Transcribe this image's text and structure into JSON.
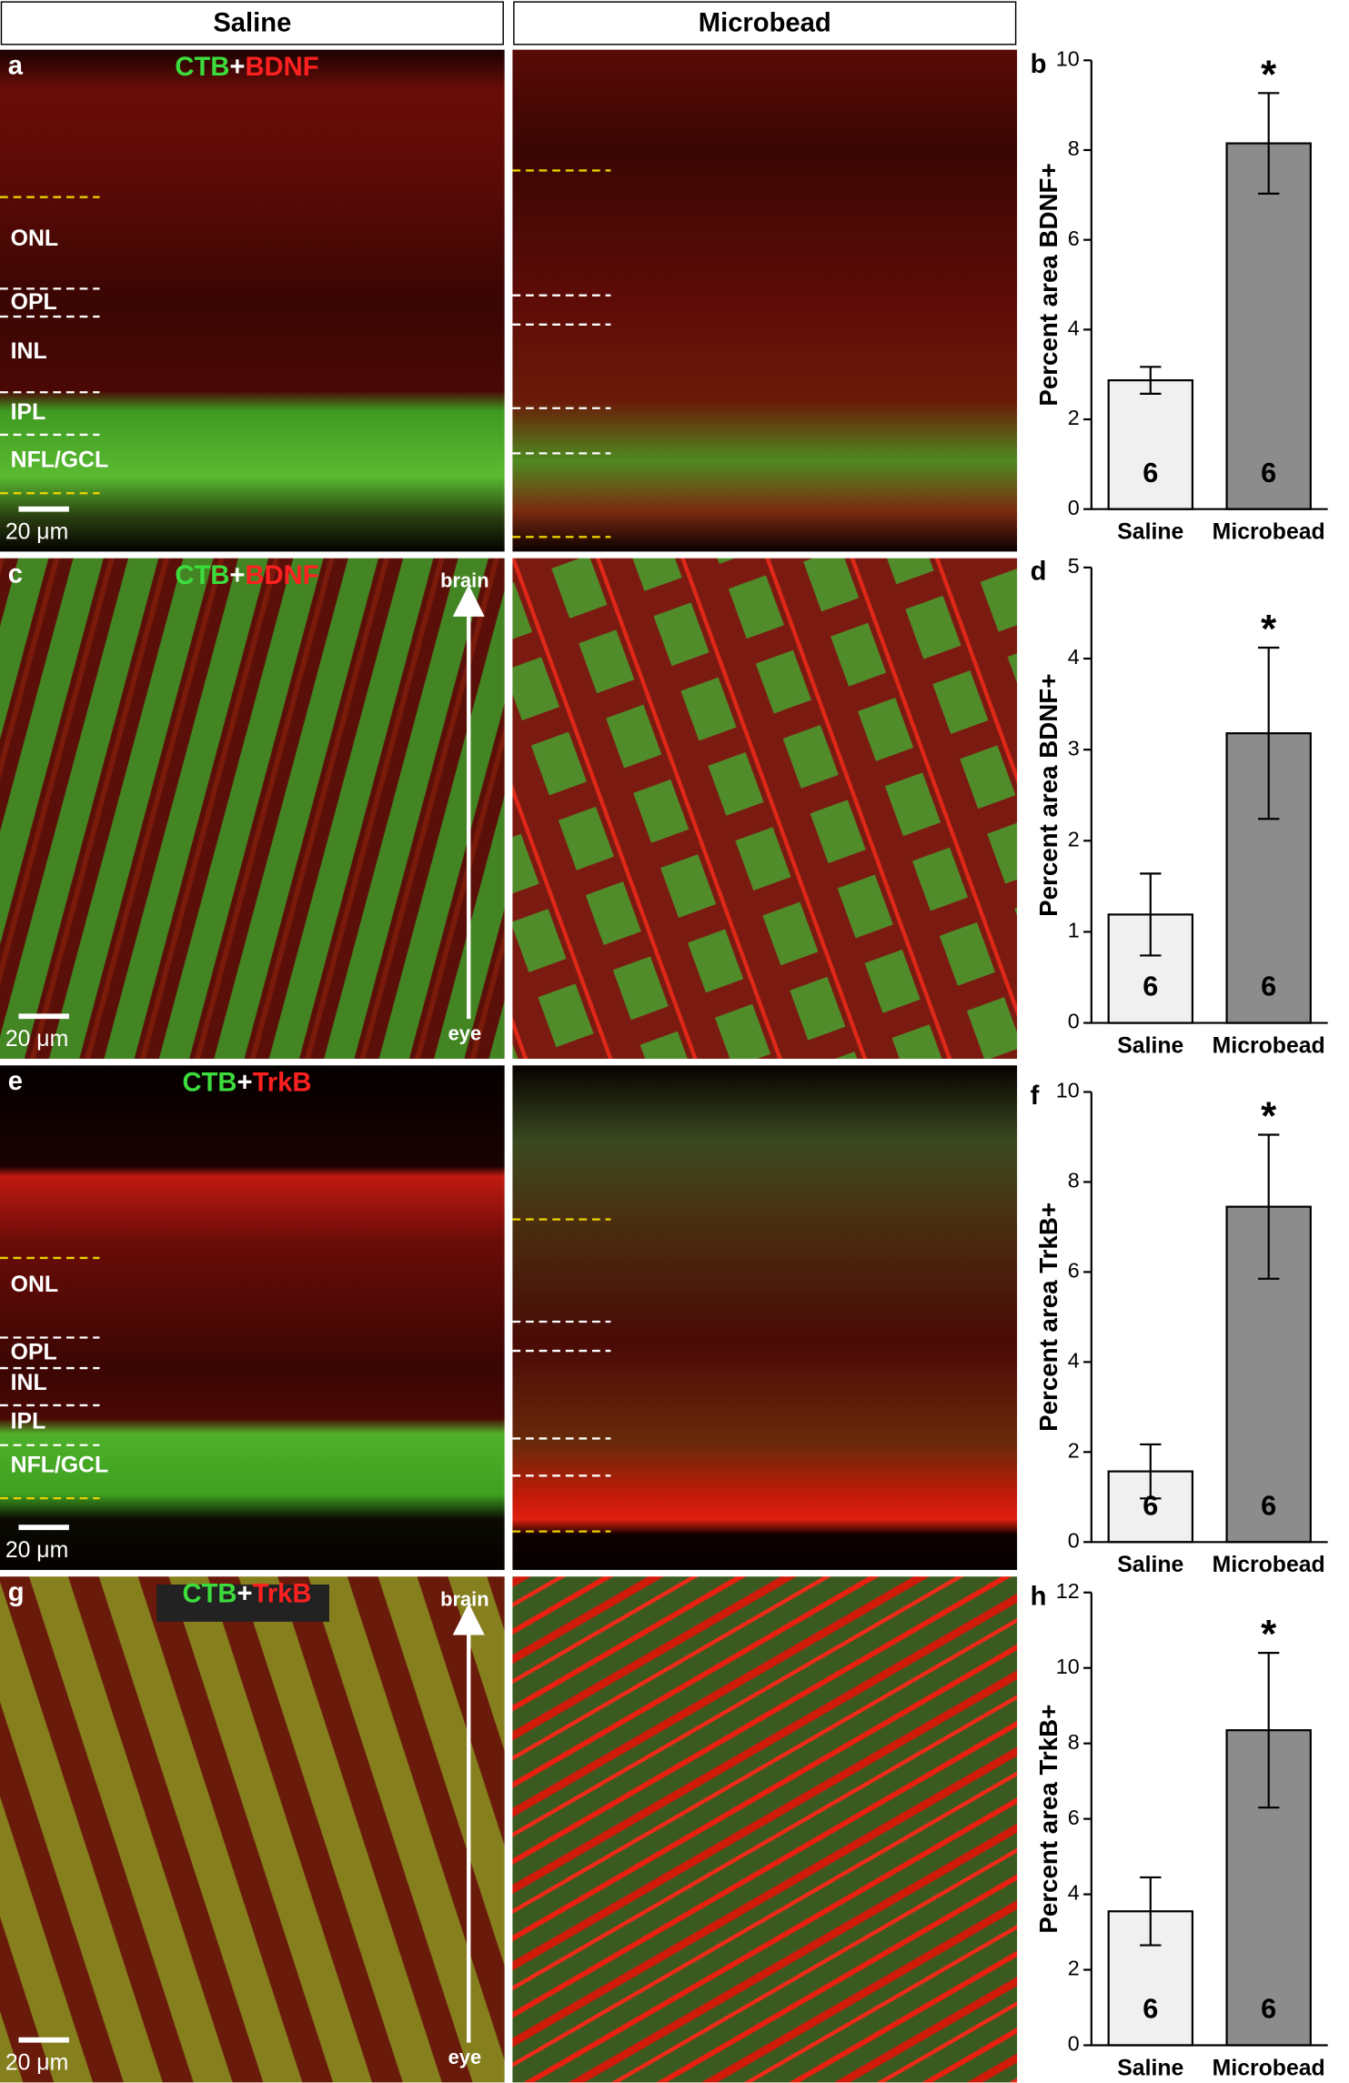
{
  "headers": [
    "Saline",
    "Microbead"
  ],
  "panels": [
    {
      "letter": "a",
      "stain": [
        "CTB",
        "+",
        "BDNF"
      ],
      "layers": [
        "ONL",
        "OPL",
        "INL",
        "IPL",
        "NFL/GCL"
      ],
      "scale": "20 μm"
    },
    {
      "letter": "c",
      "stain": [
        "CTB",
        "+",
        "BDNF"
      ],
      "arrow": [
        "brain",
        "eye"
      ],
      "scale": "20 μm"
    },
    {
      "letter": "e",
      "stain": [
        "CTB",
        "+",
        "TrkB"
      ],
      "layers": [
        "ONL",
        "OPL",
        "INL",
        "IPL",
        "NFL/GCL"
      ],
      "scale": "20 μm"
    },
    {
      "letter": "g",
      "stain": [
        "CTB",
        "+",
        "TrkB"
      ],
      "arrow": [
        "brain",
        "eye"
      ],
      "scale": "20 μm"
    }
  ],
  "chart_data": [
    {
      "type": "bar",
      "panel_label": "b",
      "ylabel": "Percent area BDNF+",
      "categories": [
        "Saline",
        "Microbead"
      ],
      "values": [
        2.87,
        8.15
      ],
      "errors": [
        0.3,
        1.12
      ],
      "n_labels": [
        "6",
        "6"
      ],
      "annotation": "*",
      "colors": [
        "#f0f0f0",
        "#8c8c8c"
      ],
      "ylim": [
        0,
        10
      ],
      "yticks": [
        0,
        2,
        4,
        6,
        8,
        10
      ]
    },
    {
      "type": "bar",
      "panel_label": "d",
      "ylabel": "Percent area BDNF+",
      "categories": [
        "Saline",
        "Microbead"
      ],
      "values": [
        1.19,
        3.18
      ],
      "errors": [
        0.45,
        0.94
      ],
      "n_labels": [
        "6",
        "6"
      ],
      "annotation": "*",
      "colors": [
        "#f0f0f0",
        "#8c8c8c"
      ],
      "ylim": [
        0,
        5
      ],
      "yticks": [
        0,
        1,
        2,
        3,
        4,
        5
      ]
    },
    {
      "type": "bar",
      "panel_label": "f",
      "ylabel": "Percent area TrkB+",
      "categories": [
        "Saline",
        "Microbead"
      ],
      "values": [
        1.57,
        7.45
      ],
      "errors": [
        0.6,
        1.6
      ],
      "n_labels": [
        "6",
        "6"
      ],
      "annotation": "*",
      "colors": [
        "#f0f0f0",
        "#8c8c8c"
      ],
      "ylim": [
        0,
        10
      ],
      "yticks": [
        0,
        2,
        4,
        6,
        8,
        10
      ]
    },
    {
      "type": "bar",
      "panel_label": "h",
      "ylabel": "Percent area TrkB+",
      "categories": [
        "Saline",
        "Microbead"
      ],
      "values": [
        3.55,
        8.35
      ],
      "errors": [
        0.9,
        2.05
      ],
      "n_labels": [
        "6",
        "6"
      ],
      "annotation": "*",
      "colors": [
        "#f0f0f0",
        "#8c8c8c"
      ],
      "ylim": [
        0,
        12
      ],
      "yticks": [
        0,
        2,
        4,
        6,
        8,
        10,
        12
      ]
    }
  ]
}
